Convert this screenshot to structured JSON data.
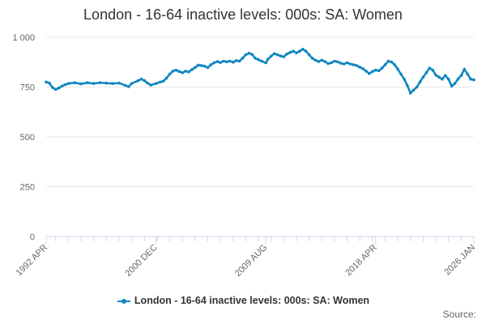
{
  "chart_data": {
    "type": "line",
    "title": "London - 16-64 inactive levels: 000s: SA: Women",
    "xlabel": "",
    "ylabel": "",
    "ylim": [
      0,
      1000
    ],
    "yticks": [
      0,
      250,
      500,
      750,
      1000
    ],
    "ytick_labels": [
      "0",
      "250",
      "500",
      "750",
      "1 000"
    ],
    "x_range": [
      "1992-04",
      "2026-01"
    ],
    "xtick_labels": [
      "1992 APR",
      "2000 DEC",
      "2009 AUG",
      "2018 APR",
      "2026 JAN"
    ],
    "grid": "horizontal",
    "legend_position": "bottom",
    "series": [
      {
        "name": "London - 16-64 inactive levels: 000s: SA: Women",
        "color": "#0e86c1",
        "points": [
          [
            "1992-04",
            775
          ],
          [
            "1992-07",
            770
          ],
          [
            "1992-10",
            748
          ],
          [
            "1993-01",
            738
          ],
          [
            "1993-04",
            745
          ],
          [
            "1993-07",
            755
          ],
          [
            "1993-10",
            762
          ],
          [
            "1994-01",
            768
          ],
          [
            "1994-07",
            772
          ],
          [
            "1995-01",
            766
          ],
          [
            "1995-07",
            772
          ],
          [
            "1996-01",
            768
          ],
          [
            "1996-07",
            772
          ],
          [
            "1997-01",
            770
          ],
          [
            "1997-07",
            768
          ],
          [
            "1998-01",
            770
          ],
          [
            "1998-07",
            758
          ],
          [
            "1998-10",
            752
          ],
          [
            "1999-01",
            768
          ],
          [
            "1999-07",
            782
          ],
          [
            "1999-10",
            790
          ],
          [
            "2000-01",
            783
          ],
          [
            "2000-04",
            770
          ],
          [
            "2000-07",
            760
          ],
          [
            "2000-12",
            768
          ],
          [
            "2001-04",
            775
          ],
          [
            "2001-07",
            780
          ],
          [
            "2001-10",
            795
          ],
          [
            "2002-01",
            815
          ],
          [
            "2002-04",
            830
          ],
          [
            "2002-07",
            835
          ],
          [
            "2002-10",
            828
          ],
          [
            "2003-01",
            822
          ],
          [
            "2003-04",
            830
          ],
          [
            "2003-07",
            826
          ],
          [
            "2003-10",
            838
          ],
          [
            "2004-01",
            848
          ],
          [
            "2004-04",
            860
          ],
          [
            "2004-07",
            858
          ],
          [
            "2004-10",
            855
          ],
          [
            "2005-01",
            848
          ],
          [
            "2005-04",
            862
          ],
          [
            "2005-07",
            872
          ],
          [
            "2005-10",
            878
          ],
          [
            "2006-01",
            873
          ],
          [
            "2006-04",
            880
          ],
          [
            "2006-07",
            877
          ],
          [
            "2006-10",
            880
          ],
          [
            "2007-01",
            875
          ],
          [
            "2007-04",
            883
          ],
          [
            "2007-07",
            880
          ],
          [
            "2007-10",
            895
          ],
          [
            "2008-01",
            912
          ],
          [
            "2008-04",
            920
          ],
          [
            "2008-07",
            914
          ],
          [
            "2008-10",
            895
          ],
          [
            "2009-01",
            888
          ],
          [
            "2009-04",
            880
          ],
          [
            "2009-08",
            872
          ],
          [
            "2009-10",
            890
          ],
          [
            "2010-01",
            905
          ],
          [
            "2010-04",
            918
          ],
          [
            "2010-07",
            912
          ],
          [
            "2010-10",
            906
          ],
          [
            "2011-01",
            902
          ],
          [
            "2011-04",
            916
          ],
          [
            "2011-07",
            924
          ],
          [
            "2011-10",
            930
          ],
          [
            "2012-01",
            922
          ],
          [
            "2012-04",
            930
          ],
          [
            "2012-07",
            940
          ],
          [
            "2012-10",
            930
          ],
          [
            "2013-01",
            912
          ],
          [
            "2013-04",
            895
          ],
          [
            "2013-07",
            885
          ],
          [
            "2013-10",
            878
          ],
          [
            "2014-01",
            885
          ],
          [
            "2014-04",
            878
          ],
          [
            "2014-07",
            868
          ],
          [
            "2014-10",
            872
          ],
          [
            "2015-01",
            880
          ],
          [
            "2015-04",
            877
          ],
          [
            "2015-07",
            870
          ],
          [
            "2015-10",
            866
          ],
          [
            "2016-01",
            872
          ],
          [
            "2016-04",
            866
          ],
          [
            "2016-07",
            862
          ],
          [
            "2016-10",
            858
          ],
          [
            "2017-01",
            850
          ],
          [
            "2017-04",
            842
          ],
          [
            "2017-07",
            830
          ],
          [
            "2017-10",
            818
          ],
          [
            "2018-01",
            828
          ],
          [
            "2018-04",
            835
          ],
          [
            "2018-07",
            832
          ],
          [
            "2018-10",
            845
          ],
          [
            "2019-01",
            862
          ],
          [
            "2019-04",
            880
          ],
          [
            "2019-07",
            876
          ],
          [
            "2019-10",
            862
          ],
          [
            "2020-01",
            840
          ],
          [
            "2020-04",
            815
          ],
          [
            "2020-07",
            790
          ],
          [
            "2020-10",
            758
          ],
          [
            "2021-01",
            720
          ],
          [
            "2021-04",
            735
          ],
          [
            "2021-07",
            750
          ],
          [
            "2021-10",
            775
          ],
          [
            "2022-01",
            800
          ],
          [
            "2022-04",
            822
          ],
          [
            "2022-07",
            845
          ],
          [
            "2022-10",
            835
          ],
          [
            "2023-01",
            810
          ],
          [
            "2023-04",
            800
          ],
          [
            "2023-07",
            790
          ],
          [
            "2023-10",
            808
          ],
          [
            "2024-01",
            790
          ],
          [
            "2024-04",
            755
          ],
          [
            "2024-07",
            768
          ],
          [
            "2024-10",
            790
          ],
          [
            "2025-01",
            808
          ],
          [
            "2025-04",
            840
          ],
          [
            "2025-07",
            815
          ],
          [
            "2025-10",
            790
          ],
          [
            "2026-01",
            786
          ]
        ]
      }
    ]
  },
  "source_label": "Source:"
}
